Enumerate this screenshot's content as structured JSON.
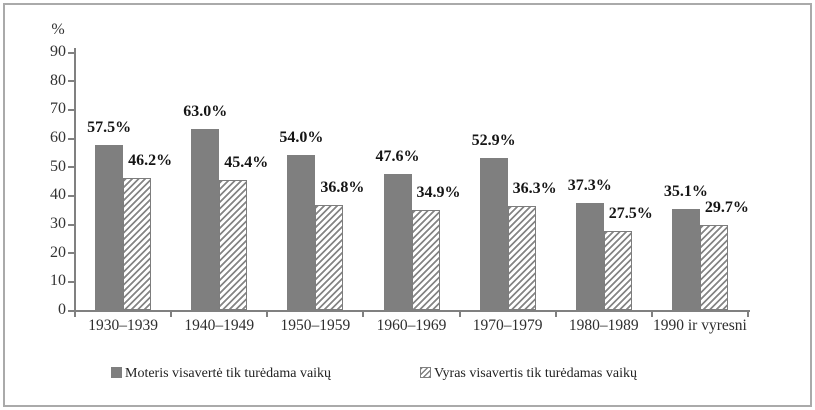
{
  "figure": {
    "background_color": "#ffffff",
    "frame_border_color": "#aaaaaa",
    "bar_solid_color": "#7f7f7f",
    "hatch_line_color": "#858585",
    "axis_color": "#808080",
    "text_color": "#2e2e2e",
    "value_label_color": "#151515"
  },
  "chart_data": {
    "type": "bar",
    "title": "",
    "xlabel": "",
    "ylabel": "%",
    "ylim": [
      0,
      90
    ],
    "yticks": [
      0,
      10,
      20,
      30,
      40,
      50,
      60,
      70,
      80,
      90
    ],
    "grid": false,
    "legend_position": "bottom",
    "data_labels": true,
    "data_label_format": "{value:.1f}%",
    "categories": [
      "1930–1939",
      "1940–1949",
      "1950–1959",
      "1960–1969",
      "1970–1979",
      "1980–1989",
      "1990 ir vyresni"
    ],
    "series": [
      {
        "name": "Moteris visavertė tik turėdama vaikų",
        "pattern": "solid",
        "color": "#7f7f7f",
        "values": [
          57.5,
          63.0,
          54.0,
          47.6,
          52.9,
          37.3,
          35.1
        ]
      },
      {
        "name": "Vyras visavertis tik turėdamas vaikų",
        "pattern": "hatched",
        "color": "#7f7f7f",
        "values": [
          46.2,
          45.4,
          36.8,
          34.9,
          36.3,
          27.5,
          29.7
        ]
      }
    ]
  }
}
